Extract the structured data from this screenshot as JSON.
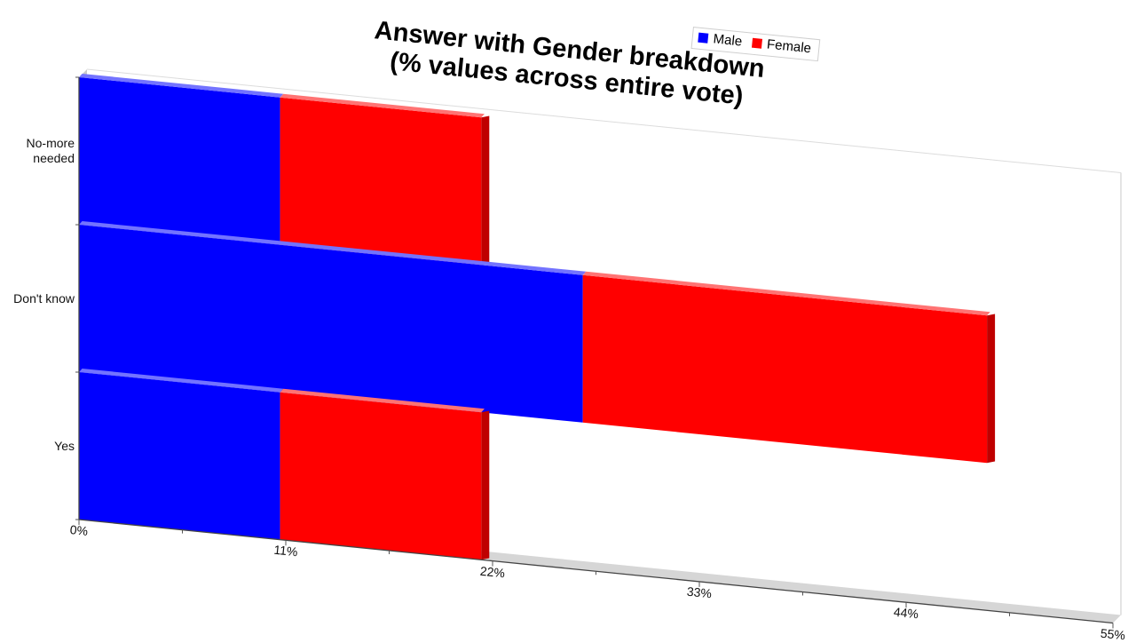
{
  "chart_data": {
    "type": "bar",
    "orientation": "horizontal",
    "stacked": true,
    "three_d": true,
    "title": [
      "Answer with Gender breakdown",
      "(% values across entire vote)"
    ],
    "categories": [
      "No-more needed",
      "Don't know",
      "Yes"
    ],
    "category_lines": [
      [
        "No-more",
        "needed"
      ],
      [
        "Don't know"
      ],
      [
        "Yes"
      ]
    ],
    "series": [
      {
        "name": "Male",
        "color": "#0000ff",
        "values": [
          10.7,
          26.8,
          10.7
        ]
      },
      {
        "name": "Female",
        "color": "#ff0000",
        "values": [
          10.7,
          21.5,
          10.7
        ]
      }
    ],
    "xlim": [
      0,
      55
    ],
    "xticks": [
      0,
      11,
      22,
      33,
      44,
      55
    ],
    "xtick_labels": [
      "0%",
      "11%",
      "22%",
      "33%",
      "44%",
      "55%"
    ],
    "legend": {
      "placement": "top-right"
    },
    "grid": false
  }
}
